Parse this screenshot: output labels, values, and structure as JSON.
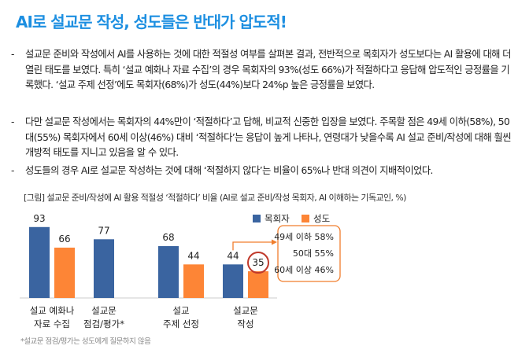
{
  "title": "AI로 설교문 작성, 성도들은 반대가 압도적!",
  "bullets": [
    "설교문 준비와 작성에서 AI를 사용하는 것에 대한 적절성 여부를 살펴본 결과, 전반적으로 목회자가 성도보다는 AI 활용에 대해 더 열린 태도를 보였다. 특히 ‘설교 예화나 자료 수집’의 경우 목회자의 93%(성도 66%)가 적절하다고 응답해 압도적인 긍정률을 기록했다. ‘설교 주제 선정’에도 목회자(68%)가 성도(44%)보다 24%p 높은 긍정률을 보였다.",
    "다만 설교문 작성에서는 목회자의 44%만이 ‘적절하다’고 답해, 비교적 신중한 입장을 보였다. 주목할 점은 49세 이하(58%), 50대(55%) 목회자에서 60세 이상(46%) 대비 ‘적절하다’는 응답이 높게 나타나, 연령대가 낮을수록 AI 설교 준비/작성에 대해 훨씬 개방적 태도를 지니고 있음을 알 수 있다.",
    "성도들의 경우 AI로 설교문 작성하는 것에 대해 ‘적절하지 않다’는 비율이 65%나 반대 의견이 지배적이었다."
  ],
  "bullet_marker": "-",
  "chart_data": {
    "type": "bar",
    "title": "[그림] 설교문 준비/작성에 AI 활용 적절성 ‘적절하다’ 비율 (AI로 설교 준비/작성 목회자, AI 이해하는 기독교인, %)",
    "categories": [
      [
        "설교 예화나",
        "자료 수집"
      ],
      [
        "설교문",
        "점검/평가*"
      ],
      [
        "설교",
        "주제 선정"
      ],
      [
        "설교문",
        "작성"
      ]
    ],
    "series": [
      {
        "name": "목회자",
        "color": "#3a64a0",
        "values": [
          93,
          77,
          68,
          44
        ]
      },
      {
        "name": "성도",
        "color": "#fd8536",
        "values": [
          66,
          null,
          44,
          35
        ]
      }
    ],
    "ylim": [
      0,
      100
    ],
    "legend": "top-right",
    "highlight": {
      "series": 1,
      "index": 3,
      "color": "#c0392b"
    },
    "annotation": [
      "49세 이하 58%",
      "50대 55%",
      "60세 이상 46%"
    ],
    "note": "*설교문 점검/평가는 성도에게 질문하지 않음"
  }
}
